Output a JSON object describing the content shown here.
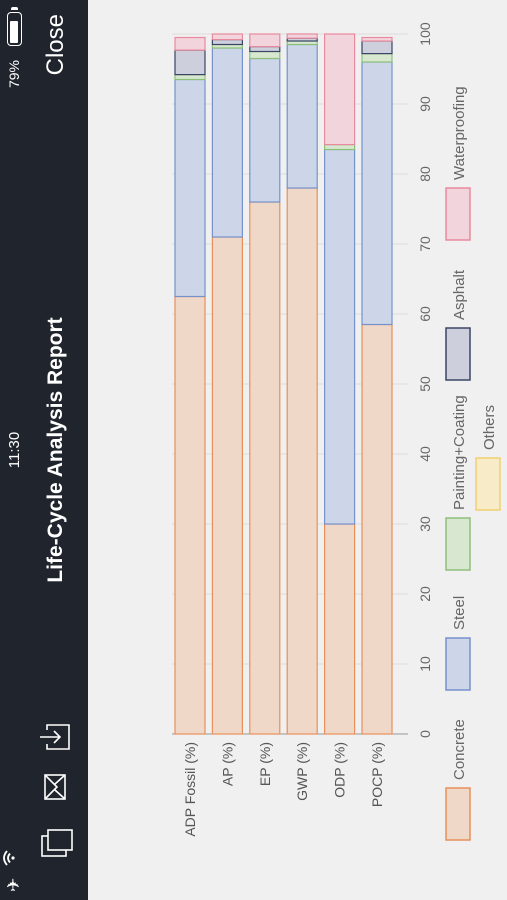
{
  "status_bar": {
    "time": "11:30",
    "battery": "79%"
  },
  "header": {
    "title": "Life-Cycle Analysis Report",
    "close_label": "Close"
  },
  "icons": {
    "copy": "copy-icon",
    "mail": "mail-icon",
    "export": "export-icon",
    "airplane": "airplane-icon",
    "wifi": "wifi-icon",
    "battery": "battery-icon"
  },
  "chart_data": {
    "type": "bar",
    "orientation": "horizontal",
    "stacked": true,
    "categories": [
      "ADP Fossil (%)",
      "AP (%)",
      "EP (%)",
      "GWP (%)",
      "ODP (%)",
      "POCP (%)"
    ],
    "xlim": [
      0,
      100
    ],
    "xticks": [
      0,
      10,
      20,
      30,
      40,
      50,
      60,
      70,
      80,
      90,
      100
    ],
    "grid": true,
    "legend_position": "bottom",
    "series": [
      {
        "name": "Concrete",
        "color": "#f0d8c8",
        "stroke": "#e8905a",
        "values": [
          62.5,
          71,
          76,
          78,
          30,
          58.5
        ]
      },
      {
        "name": "Steel",
        "color": "#ccd6e8",
        "stroke": "#7592cc",
        "values": [
          31,
          27,
          20.5,
          20.5,
          53.5,
          37.5
        ]
      },
      {
        "name": "Painting+Coating",
        "color": "#d8e8d0",
        "stroke": "#8cc07a",
        "values": [
          0.7,
          0.5,
          1,
          0.5,
          0.7,
          1.2
        ]
      },
      {
        "name": "Asphalt",
        "color": "#cdd0dc",
        "stroke": "#3a4566",
        "values": [
          3.5,
          0.7,
          0.7,
          0.4,
          0,
          1.8
        ]
      },
      {
        "name": "Waterproofing",
        "color": "#f2d4dc",
        "stroke": "#e88a9e",
        "values": [
          1.8,
          0.8,
          1.8,
          0.6,
          15.8,
          0.5
        ]
      },
      {
        "name": "Others",
        "color": "#f8ecc8",
        "stroke": "#f0d070",
        "values": [
          0,
          0,
          0,
          0,
          0,
          0
        ]
      }
    ]
  }
}
